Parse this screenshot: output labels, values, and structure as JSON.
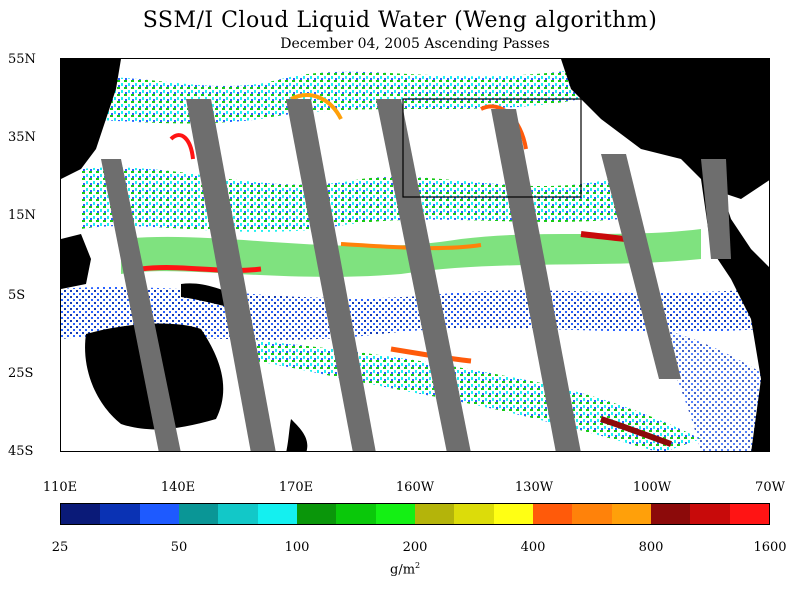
{
  "header": {
    "title": "SSM/I Cloud Liquid Water (Weng algorithm)",
    "subtitle": "December 04, 2005  Ascending Passes"
  },
  "map": {
    "lat_labels": [
      "55N",
      "35N",
      "15N",
      "5S",
      "25S",
      "45S"
    ],
    "lon_labels": [
      "110E",
      "140E",
      "170E",
      "160W",
      "130W",
      "100W",
      "70W"
    ],
    "colors": {
      "land": "#000000",
      "missing_swath": "#6e6e6e",
      "no_cloud": "#ffffff"
    }
  },
  "colorbar": {
    "tick_labels": [
      "25",
      "50",
      "100",
      "200",
      "400",
      "800",
      "1600"
    ],
    "units_base": "g/m",
    "units_sup": "2",
    "colors": [
      "#0a1a78",
      "#0a32b4",
      "#1e5aff",
      "#0a9696",
      "#12c8c8",
      "#14f0f0",
      "#0a960a",
      "#0ac80a",
      "#14f014",
      "#b4b40a",
      "#dcdc0a",
      "#ffff14",
      "#ff5a0a",
      "#ff820a",
      "#ffa00a",
      "#8c0a0a",
      "#c80a0a",
      "#ff1414"
    ]
  }
}
